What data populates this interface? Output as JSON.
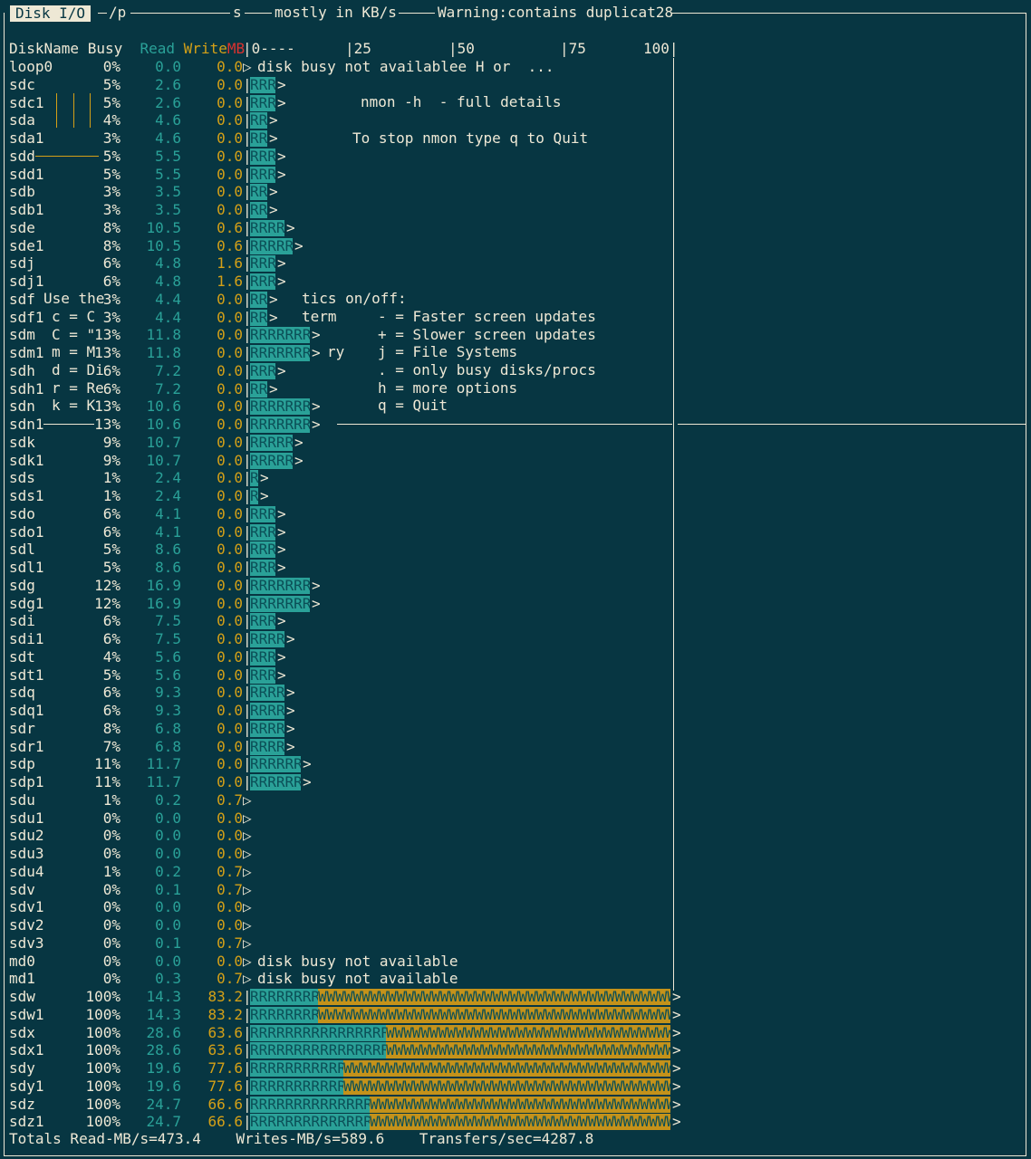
{
  "header": {
    "tab_label": "Disk I/O",
    "title_parts": [
      "/p",
      "s",
      "mostly in KB/s",
      "Warning:contains duplicat28"
    ]
  },
  "columns": {
    "name": "DiskName",
    "busy": "Busy",
    "read": "Read",
    "write": "Write",
    "mb": "MB",
    "scale": [
      "|0----",
      "|25",
      "|50",
      "|75",
      "100|"
    ]
  },
  "disks": [
    {
      "name": "loop0",
      "busy": "0%",
      "read": "0.0",
      "write": "0.0",
      "r": 0,
      "w": 0,
      "note": "disk busy not availablee H or  ..."
    },
    {
      "name": "sdc",
      "busy": "5%",
      "read": "2.6",
      "write": "0.0",
      "r": 3,
      "w": 0
    },
    {
      "name": "sdc1",
      "busy": "5%",
      "read": "2.6",
      "write": "0.0",
      "r": 3,
      "w": 0
    },
    {
      "name": "sda",
      "busy": "4%",
      "read": "4.6",
      "write": "0.0",
      "r": 2,
      "w": 0
    },
    {
      "name": "sda1",
      "busy": "3%",
      "read": "4.6",
      "write": "0.0",
      "r": 2,
      "w": 0
    },
    {
      "name": "sdd",
      "busy": "5%",
      "read": "5.5",
      "write": "0.0",
      "r": 3,
      "w": 0
    },
    {
      "name": "sdd1",
      "busy": "5%",
      "read": "5.5",
      "write": "0.0",
      "r": 3,
      "w": 0
    },
    {
      "name": "sdb",
      "busy": "3%",
      "read": "3.5",
      "write": "0.0",
      "r": 2,
      "w": 0
    },
    {
      "name": "sdb1",
      "busy": "3%",
      "read": "3.5",
      "write": "0.0",
      "r": 2,
      "w": 0
    },
    {
      "name": "sde",
      "busy": "8%",
      "read": "10.5",
      "write": "0.6",
      "r": 4,
      "w": 0
    },
    {
      "name": "sde1",
      "busy": "8%",
      "read": "10.5",
      "write": "0.6",
      "r": 5,
      "w": 0
    },
    {
      "name": "sdj",
      "busy": "6%",
      "read": "4.8",
      "write": "1.6",
      "r": 3,
      "w": 0
    },
    {
      "name": "sdj1",
      "busy": "6%",
      "read": "4.8",
      "write": "1.6",
      "r": 3,
      "w": 0
    },
    {
      "name": "sdf",
      "busy": "3%",
      "read": "4.4",
      "write": "0.0",
      "r": 2,
      "w": 0
    },
    {
      "name": "sdf1",
      "busy": "3%",
      "read": "4.4",
      "write": "0.0",
      "r": 2,
      "w": 0
    },
    {
      "name": "sdm",
      "busy": "13%",
      "read": "11.8",
      "write": "0.0",
      "r": 7,
      "w": 0
    },
    {
      "name": "sdm1",
      "busy": "13%",
      "read": "11.8",
      "write": "0.0",
      "r": 7,
      "w": 0
    },
    {
      "name": "sdh",
      "busy": "6%",
      "read": "7.2",
      "write": "0.0",
      "r": 3,
      "w": 0
    },
    {
      "name": "sdh1",
      "busy": "6%",
      "read": "7.2",
      "write": "0.0",
      "r": 2,
      "w": 0
    },
    {
      "name": "sdn",
      "busy": "13%",
      "read": "10.6",
      "write": "0.0",
      "r": 7,
      "w": 0
    },
    {
      "name": "sdn1",
      "busy": "13%",
      "read": "10.6",
      "write": "0.0",
      "r": 7,
      "w": 0
    },
    {
      "name": "sdk",
      "busy": "9%",
      "read": "10.7",
      "write": "0.0",
      "r": 5,
      "w": 0
    },
    {
      "name": "sdk1",
      "busy": "9%",
      "read": "10.7",
      "write": "0.0",
      "r": 5,
      "w": 0
    },
    {
      "name": "sds",
      "busy": "1%",
      "read": "2.4",
      "write": "0.0",
      "r": 1,
      "w": 0
    },
    {
      "name": "sds1",
      "busy": "1%",
      "read": "2.4",
      "write": "0.0",
      "r": 1,
      "w": 0
    },
    {
      "name": "sdo",
      "busy": "6%",
      "read": "4.1",
      "write": "0.0",
      "r": 3,
      "w": 0
    },
    {
      "name": "sdo1",
      "busy": "6%",
      "read": "4.1",
      "write": "0.0",
      "r": 3,
      "w": 0
    },
    {
      "name": "sdl",
      "busy": "5%",
      "read": "8.6",
      "write": "0.0",
      "r": 3,
      "w": 0
    },
    {
      "name": "sdl1",
      "busy": "5%",
      "read": "8.6",
      "write": "0.0",
      "r": 3,
      "w": 0
    },
    {
      "name": "sdg",
      "busy": "12%",
      "read": "16.9",
      "write": "0.0",
      "r": 7,
      "w": 0
    },
    {
      "name": "sdg1",
      "busy": "12%",
      "read": "16.9",
      "write": "0.0",
      "r": 7,
      "w": 0
    },
    {
      "name": "sdi",
      "busy": "6%",
      "read": "7.5",
      "write": "0.0",
      "r": 3,
      "w": 0
    },
    {
      "name": "sdi1",
      "busy": "6%",
      "read": "7.5",
      "write": "0.0",
      "r": 4,
      "w": 0
    },
    {
      "name": "sdt",
      "busy": "4%",
      "read": "5.6",
      "write": "0.0",
      "r": 3,
      "w": 0
    },
    {
      "name": "sdt1",
      "busy": "5%",
      "read": "5.6",
      "write": "0.0",
      "r": 3,
      "w": 0
    },
    {
      "name": "sdq",
      "busy": "6%",
      "read": "9.3",
      "write": "0.0",
      "r": 4,
      "w": 0
    },
    {
      "name": "sdq1",
      "busy": "6%",
      "read": "9.3",
      "write": "0.0",
      "r": 4,
      "w": 0
    },
    {
      "name": "sdr",
      "busy": "8%",
      "read": "6.8",
      "write": "0.0",
      "r": 4,
      "w": 0
    },
    {
      "name": "sdr1",
      "busy": "7%",
      "read": "6.8",
      "write": "0.0",
      "r": 4,
      "w": 0
    },
    {
      "name": "sdp",
      "busy": "11%",
      "read": "11.7",
      "write": "0.0",
      "r": 6,
      "w": 0
    },
    {
      "name": "sdp1",
      "busy": "11%",
      "read": "11.7",
      "write": "0.0",
      "r": 6,
      "w": 0
    },
    {
      "name": "sdu",
      "busy": "1%",
      "read": "0.2",
      "write": "0.7",
      "r": 0,
      "w": 0
    },
    {
      "name": "sdu1",
      "busy": "0%",
      "read": "0.0",
      "write": "0.0",
      "r": 0,
      "w": 0
    },
    {
      "name": "sdu2",
      "busy": "0%",
      "read": "0.0",
      "write": "0.0",
      "r": 0,
      "w": 0
    },
    {
      "name": "sdu3",
      "busy": "0%",
      "read": "0.0",
      "write": "0.0",
      "r": 0,
      "w": 0
    },
    {
      "name": "sdu4",
      "busy": "1%",
      "read": "0.2",
      "write": "0.7",
      "r": 0,
      "w": 0
    },
    {
      "name": "sdv",
      "busy": "0%",
      "read": "0.1",
      "write": "0.7",
      "r": 0,
      "w": 0
    },
    {
      "name": "sdv1",
      "busy": "0%",
      "read": "0.0",
      "write": "0.0",
      "r": 0,
      "w": 0
    },
    {
      "name": "sdv2",
      "busy": "0%",
      "read": "0.0",
      "write": "0.0",
      "r": 0,
      "w": 0
    },
    {
      "name": "sdv3",
      "busy": "0%",
      "read": "0.1",
      "write": "0.7",
      "r": 0,
      "w": 0
    },
    {
      "name": "md0",
      "busy": "0%",
      "read": "0.0",
      "write": "0.0",
      "r": 0,
      "w": 0,
      "note": "disk busy not available"
    },
    {
      "name": "md1",
      "busy": "0%",
      "read": "0.3",
      "write": "0.7",
      "r": 0,
      "w": 0,
      "note": "disk busy not available"
    },
    {
      "name": "sdw",
      "busy": "100%",
      "read": "14.3",
      "write": "83.2",
      "r": 8,
      "w": 41
    },
    {
      "name": "sdw1",
      "busy": "100%",
      "read": "14.3",
      "write": "83.2",
      "r": 8,
      "w": 41
    },
    {
      "name": "sdx",
      "busy": "100%",
      "read": "28.6",
      "write": "63.6",
      "r": 16,
      "w": 33
    },
    {
      "name": "sdx1",
      "busy": "100%",
      "read": "28.6",
      "write": "63.6",
      "r": 16,
      "w": 33
    },
    {
      "name": "sdy",
      "busy": "100%",
      "read": "19.6",
      "write": "77.6",
      "r": 11,
      "w": 38
    },
    {
      "name": "sdy1",
      "busy": "100%",
      "read": "19.6",
      "write": "77.6",
      "r": 11,
      "w": 38
    },
    {
      "name": "sdz",
      "busy": "100%",
      "read": "24.7",
      "write": "66.6",
      "r": 14,
      "w": 35
    },
    {
      "name": "sdz1",
      "busy": "100%",
      "read": "24.7",
      "write": "66.6",
      "r": 14,
      "w": 35
    }
  ],
  "help_popup": {
    "lines": [
      "nmon -h  - full details",
      "To stop nmon type q to Quit",
      "Use the",
      "tics on/off:",
      "c = C",
      "term",
      "- = Faster screen updates",
      "C = \"",
      "+ = Slower screen updates",
      "m = M",
      "ry",
      "j = File Systems",
      "d = Di",
      ". = only busy disks/procs",
      "r = Re",
      "h = more options",
      "k = K",
      "q = Quit"
    ]
  },
  "totals": {
    "read": "Totals Read-MB/s=473.4",
    "writes": "Writes-MB/s=589.6",
    "transfers": "Transfers/sec=4287.8"
  },
  "colors": {
    "background": "#073642",
    "read": "#2aa198",
    "write": "#d4a017",
    "mb": "#dc322f",
    "text": "#eee8d5"
  }
}
